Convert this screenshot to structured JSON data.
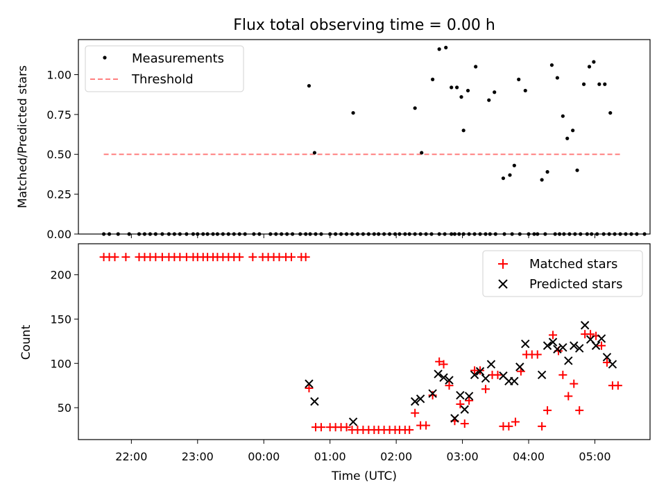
{
  "chart_data": [
    {
      "type": "scatter",
      "title": "Flux total observing time = 0.00 h",
      "xlabel": "",
      "ylabel": "Matched/Predicted stars",
      "ylim": [
        0,
        1.22
      ],
      "y_ticks": [
        "0.00",
        "0.25",
        "0.50",
        "0.75",
        "1.00"
      ],
      "legend_position": "upper-left",
      "series": [
        {
          "name": "Measurements",
          "marker": "dot",
          "color": "#000000",
          "x": [
            "21:35",
            "21:40",
            "21:48",
            "21:58",
            "22:07",
            "22:12",
            "22:17",
            "22:22",
            "22:28",
            "22:34",
            "22:39",
            "22:44",
            "22:50",
            "22:56",
            "23:00",
            "23:05",
            "23:09",
            "23:14",
            "23:18",
            "23:23",
            "23:28",
            "23:33",
            "23:38",
            "23:43",
            "23:51",
            "23:56",
            "00:06",
            "00:11",
            "00:16",
            "00:21",
            "00:26",
            "00:33",
            "00:38",
            "00:42",
            "00:47",
            "00:52",
            "01:00",
            "01:05",
            "01:10",
            "01:15",
            "01:20",
            "01:25",
            "01:30",
            "01:35",
            "01:40",
            "01:44",
            "01:49",
            "01:54",
            "01:59",
            "02:03",
            "02:08",
            "02:12",
            "02:17",
            "02:22",
            "02:27",
            "02:32",
            "02:39",
            "02:44",
            "02:50",
            "02:53",
            "02:57",
            "03:01",
            "03:06",
            "03:11",
            "03:16",
            "03:21",
            "03:25",
            "03:30",
            "03:38",
            "03:45",
            "03:52",
            "04:00",
            "04:05",
            "04:08",
            "04:15",
            "04:24",
            "04:28",
            "04:32",
            "04:37",
            "04:42",
            "04:47",
            "04:53",
            "04:57",
            "05:02",
            "05:08",
            "05:13",
            "05:18",
            "05:23",
            "05:28",
            "05:33",
            "05:38",
            "05:45"
          ],
          "y": [
            0,
            0,
            0,
            0,
            0,
            0,
            0,
            0,
            0,
            0,
            0,
            0,
            0,
            0,
            0,
            0,
            0,
            0,
            0,
            0,
            0,
            0,
            0,
            0,
            0,
            0,
            0,
            0,
            0,
            0,
            0,
            0,
            0,
            0,
            0,
            0,
            0,
            0,
            0,
            0,
            0,
            0,
            0,
            0,
            0,
            0,
            0,
            0,
            0,
            0,
            0,
            0,
            0,
            0,
            0,
            0,
            0,
            0,
            0,
            0,
            0,
            0,
            0,
            0,
            0,
            0,
            0,
            0,
            0,
            0,
            0,
            0,
            0,
            0,
            0,
            0,
            0,
            0,
            0,
            0,
            0,
            0,
            0,
            0,
            0,
            0,
            0,
            0,
            0,
            0,
            0,
            0
          ],
          "extra": [
            {
              "x": "00:41",
              "y": 0.93
            },
            {
              "x": "00:46",
              "y": 0.51
            },
            {
              "x": "01:21",
              "y": 0.76
            },
            {
              "x": "02:17",
              "y": 0.79
            },
            {
              "x": "02:23",
              "y": 0.51
            },
            {
              "x": "02:33",
              "y": 0.97
            },
            {
              "x": "02:39",
              "y": 1.16
            },
            {
              "x": "02:45",
              "y": 1.17
            },
            {
              "x": "02:50",
              "y": 0.92
            },
            {
              "x": "02:55",
              "y": 0.92
            },
            {
              "x": "02:59",
              "y": 0.86
            },
            {
              "x": "03:01",
              "y": 0.65
            },
            {
              "x": "03:05",
              "y": 0.9
            },
            {
              "x": "03:12",
              "y": 1.05
            },
            {
              "x": "03:24",
              "y": 0.84
            },
            {
              "x": "03:29",
              "y": 0.89
            },
            {
              "x": "03:37",
              "y": 0.35
            },
            {
              "x": "03:43",
              "y": 0.37
            },
            {
              "x": "03:47",
              "y": 0.43
            },
            {
              "x": "03:51",
              "y": 0.97
            },
            {
              "x": "03:57",
              "y": 0.9
            },
            {
              "x": "04:12",
              "y": 0.34
            },
            {
              "x": "04:17",
              "y": 0.39
            },
            {
              "x": "04:21",
              "y": 1.06
            },
            {
              "x": "04:26",
              "y": 0.98
            },
            {
              "x": "04:31",
              "y": 0.74
            },
            {
              "x": "04:35",
              "y": 0.6
            },
            {
              "x": "04:40",
              "y": 0.65
            },
            {
              "x": "04:44",
              "y": 0.4
            },
            {
              "x": "04:50",
              "y": 0.94
            },
            {
              "x": "04:55",
              "y": 1.05
            },
            {
              "x": "04:59",
              "y": 1.08
            },
            {
              "x": "05:04",
              "y": 0.94
            },
            {
              "x": "05:09",
              "y": 0.94
            },
            {
              "x": "05:14",
              "y": 0.76
            }
          ]
        },
        {
          "name": "Threshold",
          "marker": "dashed-line",
          "color": "#ff7f7f",
          "x": [
            "21:35",
            "05:24"
          ],
          "y": [
            0.5,
            0.5
          ]
        }
      ]
    },
    {
      "type": "scatter",
      "title": "",
      "xlabel": "Time (UTC)",
      "ylabel": "Count",
      "ylim": [
        14,
        235
      ],
      "y_ticks": [
        "50",
        "100",
        "150",
        "200"
      ],
      "x_ticks": [
        "22:00",
        "23:00",
        "00:00",
        "01:00",
        "02:00",
        "03:00",
        "04:00",
        "05:00"
      ],
      "legend_position": "upper-right",
      "series": [
        {
          "name": "Matched stars",
          "marker": "plus",
          "color": "#ff0000",
          "points": [
            {
              "x": "21:35",
              "y": 220
            },
            {
              "x": "21:40",
              "y": 220
            },
            {
              "x": "21:45",
              "y": 220
            },
            {
              "x": "21:55",
              "y": 220
            },
            {
              "x": "22:07",
              "y": 220
            },
            {
              "x": "22:12",
              "y": 220
            },
            {
              "x": "22:17",
              "y": 220
            },
            {
              "x": "22:22",
              "y": 220
            },
            {
              "x": "22:28",
              "y": 220
            },
            {
              "x": "22:34",
              "y": 220
            },
            {
              "x": "22:39",
              "y": 220
            },
            {
              "x": "22:44",
              "y": 220
            },
            {
              "x": "22:50",
              "y": 220
            },
            {
              "x": "22:56",
              "y": 220
            },
            {
              "x": "23:00",
              "y": 220
            },
            {
              "x": "23:05",
              "y": 220
            },
            {
              "x": "23:09",
              "y": 220
            },
            {
              "x": "23:14",
              "y": 220
            },
            {
              "x": "23:18",
              "y": 220
            },
            {
              "x": "23:23",
              "y": 220
            },
            {
              "x": "23:28",
              "y": 220
            },
            {
              "x": "23:33",
              "y": 220
            },
            {
              "x": "23:38",
              "y": 220
            },
            {
              "x": "23:50",
              "y": 220
            },
            {
              "x": "23:59",
              "y": 220
            },
            {
              "x": "00:04",
              "y": 220
            },
            {
              "x": "00:09",
              "y": 220
            },
            {
              "x": "00:14",
              "y": 220
            },
            {
              "x": "00:20",
              "y": 220
            },
            {
              "x": "00:25",
              "y": 220
            },
            {
              "x": "00:34",
              "y": 220
            },
            {
              "x": "00:38",
              "y": 220
            },
            {
              "x": "00:41",
              "y": 72
            },
            {
              "x": "00:47",
              "y": 28
            },
            {
              "x": "00:52",
              "y": 28
            },
            {
              "x": "01:00",
              "y": 28
            },
            {
              "x": "01:05",
              "y": 28
            },
            {
              "x": "01:10",
              "y": 28
            },
            {
              "x": "01:15",
              "y": 28
            },
            {
              "x": "01:20",
              "y": 25
            },
            {
              "x": "01:25",
              "y": 25
            },
            {
              "x": "01:30",
              "y": 25
            },
            {
              "x": "01:35",
              "y": 25
            },
            {
              "x": "01:40",
              "y": 25
            },
            {
              "x": "01:44",
              "y": 25
            },
            {
              "x": "01:49",
              "y": 25
            },
            {
              "x": "01:54",
              "y": 25
            },
            {
              "x": "01:59",
              "y": 25
            },
            {
              "x": "02:03",
              "y": 25
            },
            {
              "x": "02:08",
              "y": 25
            },
            {
              "x": "02:12",
              "y": 25
            },
            {
              "x": "02:17",
              "y": 44
            },
            {
              "x": "02:22",
              "y": 30
            },
            {
              "x": "02:27",
              "y": 30
            },
            {
              "x": "02:33",
              "y": 64
            },
            {
              "x": "02:39",
              "y": 102
            },
            {
              "x": "02:43",
              "y": 99
            },
            {
              "x": "02:48",
              "y": 75
            },
            {
              "x": "02:53",
              "y": 35
            },
            {
              "x": "02:58",
              "y": 54
            },
            {
              "x": "03:02",
              "y": 32
            },
            {
              "x": "03:06",
              "y": 58
            },
            {
              "x": "03:11",
              "y": 92
            },
            {
              "x": "03:16",
              "y": 92
            },
            {
              "x": "03:21",
              "y": 71
            },
            {
              "x": "03:27",
              "y": 87
            },
            {
              "x": "03:32",
              "y": 87
            },
            {
              "x": "03:37",
              "y": 29
            },
            {
              "x": "03:42",
              "y": 29
            },
            {
              "x": "03:48",
              "y": 34
            },
            {
              "x": "03:53",
              "y": 91
            },
            {
              "x": "03:58",
              "y": 110
            },
            {
              "x": "04:03",
              "y": 110
            },
            {
              "x": "04:08",
              "y": 110
            },
            {
              "x": "04:12",
              "y": 29
            },
            {
              "x": "04:17",
              "y": 47
            },
            {
              "x": "04:22",
              "y": 132
            },
            {
              "x": "04:27",
              "y": 114
            },
            {
              "x": "04:31",
              "y": 87
            },
            {
              "x": "04:36",
              "y": 63
            },
            {
              "x": "04:41",
              "y": 77
            },
            {
              "x": "04:46",
              "y": 47
            },
            {
              "x": "04:51",
              "y": 133
            },
            {
              "x": "04:56",
              "y": 133
            },
            {
              "x": "05:01",
              "y": 131
            },
            {
              "x": "05:06",
              "y": 120
            },
            {
              "x": "05:11",
              "y": 101
            },
            {
              "x": "05:16",
              "y": 75
            },
            {
              "x": "05:21",
              "y": 75
            }
          ]
        },
        {
          "name": "Predicted stars",
          "marker": "x",
          "color": "#000000",
          "points": [
            {
              "x": "00:41",
              "y": 77
            },
            {
              "x": "00:46",
              "y": 57
            },
            {
              "x": "01:21",
              "y": 34
            },
            {
              "x": "02:17",
              "y": 57
            },
            {
              "x": "02:22",
              "y": 60
            },
            {
              "x": "02:33",
              "y": 66
            },
            {
              "x": "02:38",
              "y": 88
            },
            {
              "x": "02:43",
              "y": 84
            },
            {
              "x": "02:48",
              "y": 81
            },
            {
              "x": "02:53",
              "y": 38
            },
            {
              "x": "02:58",
              "y": 64
            },
            {
              "x": "03:02",
              "y": 48
            },
            {
              "x": "03:06",
              "y": 63
            },
            {
              "x": "03:11",
              "y": 87
            },
            {
              "x": "03:16",
              "y": 91
            },
            {
              "x": "03:21",
              "y": 83
            },
            {
              "x": "03:26",
              "y": 99
            },
            {
              "x": "03:37",
              "y": 86
            },
            {
              "x": "03:42",
              "y": 80
            },
            {
              "x": "03:47",
              "y": 80
            },
            {
              "x": "03:52",
              "y": 96
            },
            {
              "x": "03:57",
              "y": 122
            },
            {
              "x": "04:12",
              "y": 87
            },
            {
              "x": "04:17",
              "y": 120
            },
            {
              "x": "04:22",
              "y": 124
            },
            {
              "x": "04:26",
              "y": 116
            },
            {
              "x": "04:31",
              "y": 118
            },
            {
              "x": "04:36",
              "y": 103
            },
            {
              "x": "04:41",
              "y": 120
            },
            {
              "x": "04:46",
              "y": 117
            },
            {
              "x": "04:51",
              "y": 143
            },
            {
              "x": "04:56",
              "y": 127
            },
            {
              "x": "05:01",
              "y": 120
            },
            {
              "x": "05:06",
              "y": 128
            },
            {
              "x": "05:11",
              "y": 107
            },
            {
              "x": "05:16",
              "y": 99
            }
          ]
        }
      ]
    }
  ]
}
